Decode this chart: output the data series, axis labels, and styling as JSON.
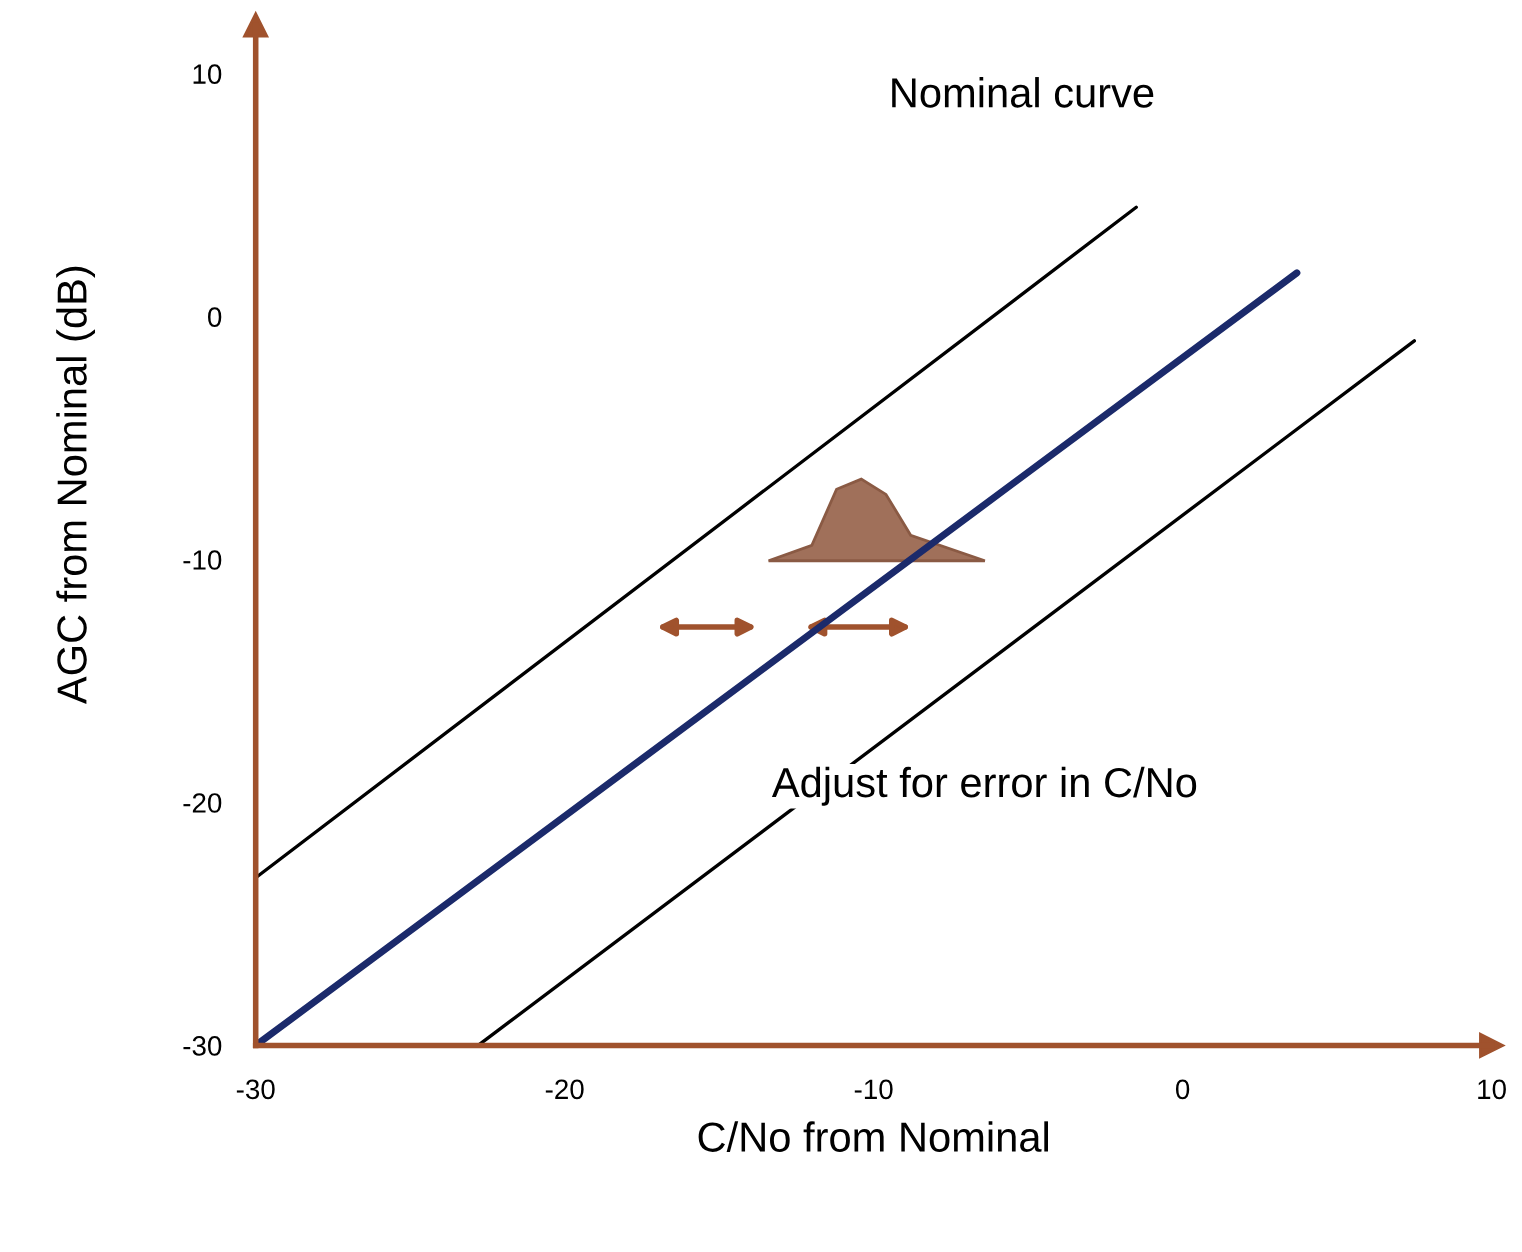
{
  "chart_data": {
    "type": "line",
    "xlabel": "C/No from Nominal",
    "ylabel": "AGC from Nominal (dB)",
    "xlim": [
      -30,
      10
    ],
    "ylim": [
      -30,
      12
    ],
    "xticks": [
      -30,
      -20,
      -10,
      0,
      10
    ],
    "yticks": [
      -30,
      -20,
      -10,
      0,
      10
    ],
    "grid": false,
    "marker": "none",
    "line_style": "solid",
    "series": [
      {
        "color": "#1b2a6b",
        "x": [
          -30,
          3.7
        ],
        "values": [
          -30,
          1.8
        ]
      },
      {
        "color": "#000000",
        "x": [
          -30,
          -1.5
        ],
        "values": [
          -23.1,
          4.5
        ]
      },
      {
        "color": "#000000",
        "x": [
          -22.8,
          7.5
        ],
        "values": [
          -30,
          -1
        ]
      }
    ],
    "annotations": [
      "Nominal curve",
      "Adjust for error in C/No"
    ]
  }
}
